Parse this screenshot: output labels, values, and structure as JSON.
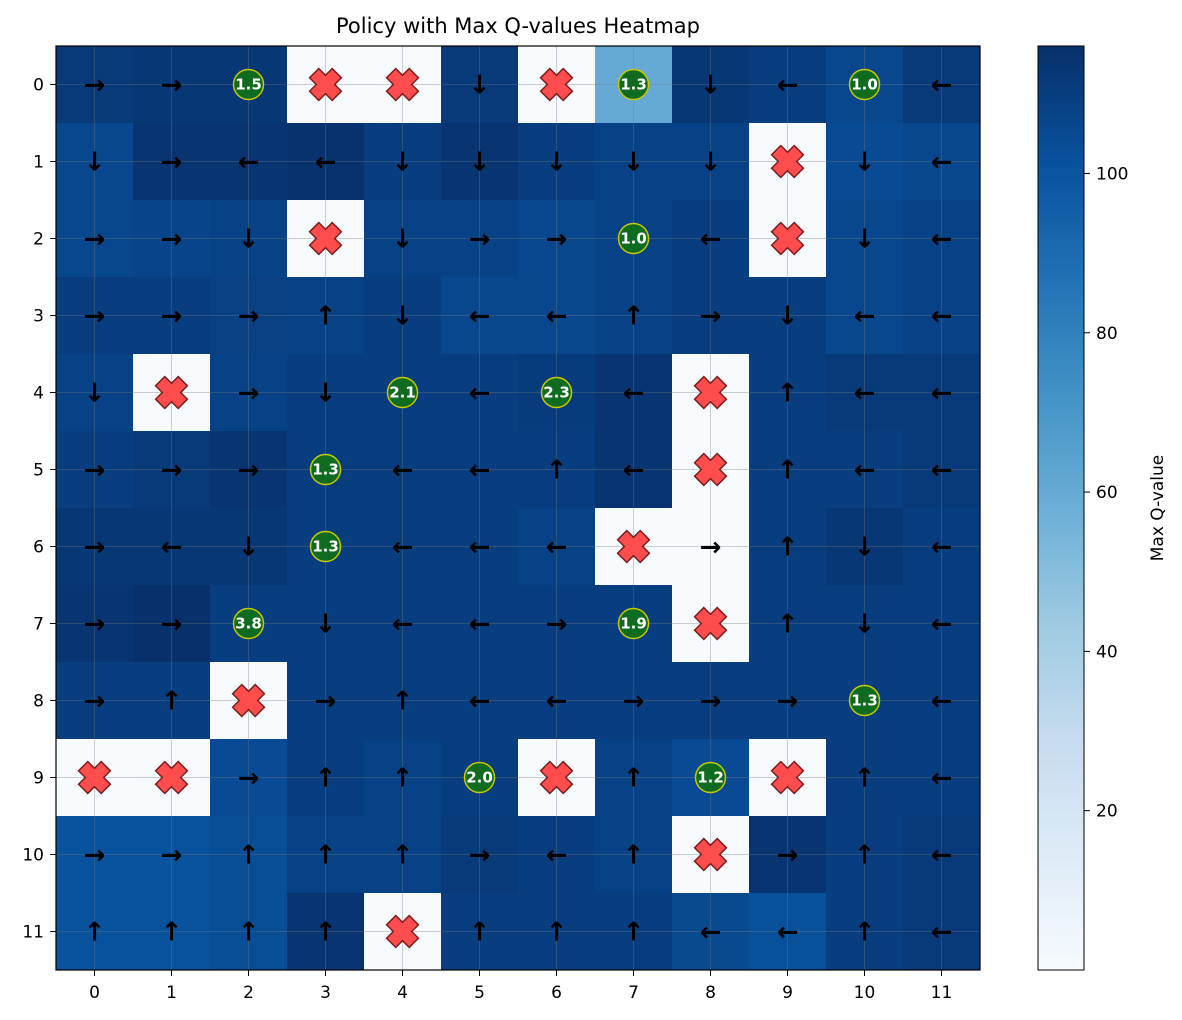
{
  "chart_data": {
    "type": "heatmap",
    "title": "Policy with Max Q-values Heatmap",
    "xlabel": "",
    "ylabel": "",
    "x_ticks": [
      "0",
      "1",
      "2",
      "3",
      "4",
      "5",
      "6",
      "7",
      "8",
      "9",
      "10",
      "11"
    ],
    "y_ticks": [
      "0",
      "1",
      "2",
      "3",
      "4",
      "5",
      "6",
      "7",
      "8",
      "9",
      "10",
      "11"
    ],
    "colorbar": {
      "label": "Max Q-value",
      "range": [
        0,
        116
      ],
      "ticks": [
        20,
        40,
        60,
        80,
        100
      ],
      "tick_labels": [
        "20",
        "40",
        "60",
        "80",
        "100"
      ],
      "colormap": "Blues"
    },
    "grid": true,
    "values": [
      [
        112,
        113,
        113,
        0,
        0,
        112,
        0,
        60,
        113,
        110,
        106,
        112
      ],
      [
        106,
        114,
        114,
        115,
        110,
        114,
        110,
        108,
        108,
        0,
        104,
        106
      ],
      [
        106,
        107,
        108,
        0,
        108,
        108,
        106,
        108,
        110,
        0,
        106,
        108
      ],
      [
        110,
        110,
        109,
        108,
        110,
        106,
        106,
        108,
        110,
        110,
        106,
        108
      ],
      [
        108,
        0,
        108,
        110,
        110,
        110,
        111,
        114,
        0,
        110,
        112,
        112
      ],
      [
        110,
        112,
        114,
        110,
        110,
        110,
        110,
        114,
        0,
        110,
        110,
        112
      ],
      [
        113,
        113,
        113,
        110,
        110,
        110,
        108,
        0,
        0,
        110,
        113,
        110
      ],
      [
        114,
        116,
        110,
        110,
        110,
        110,
        110,
        110,
        0,
        110,
        110,
        110
      ],
      [
        110,
        110,
        0,
        110,
        110,
        110,
        110,
        110,
        110,
        110,
        110,
        110
      ],
      [
        0,
        0,
        104,
        110,
        108,
        110,
        0,
        108,
        104,
        0,
        110,
        110
      ],
      [
        101,
        101,
        103,
        108,
        108,
        112,
        110,
        108,
        0,
        114,
        110,
        112
      ],
      [
        101,
        101,
        103,
        114,
        0,
        110,
        110,
        110,
        105,
        102,
        110,
        112
      ]
    ],
    "policy": [
      [
        "right",
        "right",
        "goal",
        "X",
        "X",
        "down",
        "X",
        "goal",
        "down",
        "left",
        "goal",
        "left"
      ],
      [
        "down",
        "right",
        "left",
        "left",
        "down",
        "down",
        "down",
        "down",
        "down",
        "X",
        "down",
        "left"
      ],
      [
        "right",
        "right",
        "down",
        "X",
        "down",
        "right",
        "right",
        "goal",
        "left",
        "X",
        "down",
        "left"
      ],
      [
        "right",
        "right",
        "right",
        "up",
        "down",
        "left",
        "left",
        "up",
        "right",
        "down",
        "left",
        "left"
      ],
      [
        "down",
        "X",
        "right",
        "down",
        "goal",
        "left",
        "goal",
        "left",
        "X",
        "up",
        "left",
        "left"
      ],
      [
        "right",
        "right",
        "right",
        "goal",
        "left",
        "left",
        "up",
        "left",
        "X",
        "up",
        "left",
        "left"
      ],
      [
        "right",
        "left",
        "down",
        "goal",
        "left",
        "left",
        "left",
        "X",
        "right",
        "up",
        "down",
        "left"
      ],
      [
        "right",
        "right",
        "goal",
        "down",
        "left",
        "left",
        "right",
        "goal",
        "X",
        "up",
        "down",
        "left"
      ],
      [
        "right",
        "up",
        "X",
        "right",
        "up",
        "left",
        "left",
        "right",
        "right",
        "right",
        "goal",
        "left"
      ],
      [
        "X",
        "X",
        "right",
        "up",
        "up",
        "goal",
        "X",
        "up",
        "goal",
        "X",
        "up",
        "left"
      ],
      [
        "right",
        "right",
        "up",
        "up",
        "up",
        "right",
        "left",
        "up",
        "X",
        "right",
        "up",
        "left"
      ],
      [
        "up",
        "up",
        "up",
        "up",
        "X",
        "up",
        "up",
        "up",
        "left",
        "left",
        "up",
        "left"
      ]
    ],
    "goal_labels": [
      {
        "row": 0,
        "col": 2,
        "text": "1.5"
      },
      {
        "row": 0,
        "col": 7,
        "text": "1.3"
      },
      {
        "row": 0,
        "col": 10,
        "text": "1.0"
      },
      {
        "row": 2,
        "col": 7,
        "text": "1.0"
      },
      {
        "row": 4,
        "col": 4,
        "text": "2.1"
      },
      {
        "row": 4,
        "col": 6,
        "text": "2.3"
      },
      {
        "row": 5,
        "col": 3,
        "text": "1.3"
      },
      {
        "row": 6,
        "col": 3,
        "text": "1.3"
      },
      {
        "row": 7,
        "col": 2,
        "text": "3.8"
      },
      {
        "row": 7,
        "col": 7,
        "text": "1.9"
      },
      {
        "row": 8,
        "col": 10,
        "text": "1.3"
      },
      {
        "row": 9,
        "col": 5,
        "text": "2.0"
      },
      {
        "row": 9,
        "col": 8,
        "text": "1.2"
      }
    ],
    "colors": {
      "obstacle_fill": "#ff4d4d",
      "obstacle_edge": "#7a1f1f",
      "goal_fill": "#0f6b1f",
      "goal_edge": "#c8c800",
      "arrow": "#000000",
      "arrow_on_light": "#000000"
    }
  }
}
